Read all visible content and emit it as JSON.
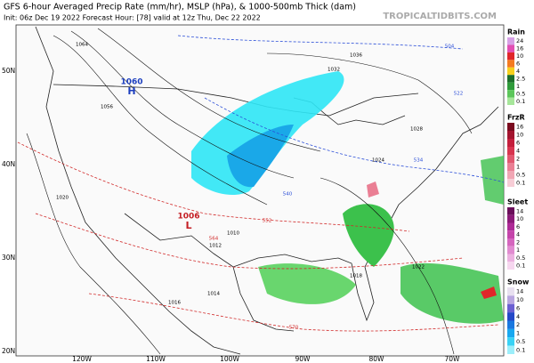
{
  "header": {
    "title": "GFS 6-hour Averaged Precip Rate (mm/hr), MSLP (hPa), & 1000-500mb Thick (dam)",
    "subtitle": "Init: 06z Dec 19 2022   Forecast Hour: [78]   valid at 12z Thu, Dec 22 2022",
    "watermark": "TROPICALTIDBITS.COM"
  },
  "map": {
    "lat_labels": [
      "50N",
      "40N",
      "30N",
      "20N"
    ],
    "lon_labels": [
      "120W",
      "110W",
      "100W",
      "90W",
      "80W",
      "70W"
    ],
    "centers": [
      {
        "value": "1060",
        "letter": "H",
        "color": "#1d3fbf"
      },
      {
        "value": "1006",
        "letter": "L",
        "color": "#c41e24"
      }
    ],
    "isobar_labels": [
      "1064",
      "1056",
      "1036",
      "1032",
      "1028",
      "1024",
      "1020",
      "1016",
      "1012",
      "1010",
      "1014",
      "1018",
      "1022"
    ],
    "thickness_labels": [
      "504",
      "522",
      "534",
      "540",
      "552",
      "564",
      "570"
    ]
  },
  "legend": [
    {
      "name": "Rain",
      "ticks": [
        24,
        16,
        10,
        6,
        4,
        2.5,
        1,
        0.5,
        0.1
      ],
      "colors": [
        "#d7a0e6",
        "#e24fb4",
        "#e0262a",
        "#f47b20",
        "#f6d01c",
        "#1c6e2a",
        "#2f9b3a",
        "#5cc65a",
        "#a6e69a"
      ]
    },
    {
      "name": "FrzR",
      "ticks": [
        16,
        10,
        6,
        4,
        2,
        1,
        0.5,
        0.1
      ],
      "colors": [
        "#7a0a1e",
        "#a3142e",
        "#c41e3c",
        "#d8344f",
        "#e25870",
        "#ea7f94",
        "#f1a6b4",
        "#f7cdd6"
      ]
    },
    {
      "name": "Sleet",
      "ticks": [
        14,
        10,
        6,
        4,
        2,
        1,
        0.5,
        0.1
      ],
      "colors": [
        "#6a0d5a",
        "#8c1a78",
        "#ad2a96",
        "#c444aa",
        "#d566be",
        "#e18bd0",
        "#ecb1e0",
        "#f6d6ef"
      ]
    },
    {
      "name": "Snow",
      "ticks": [
        14,
        10,
        6,
        4,
        2,
        1,
        0.5,
        0.1
      ],
      "colors": [
        "#e8e0f0",
        "#b9a6e0",
        "#6b5fd2",
        "#2448c8",
        "#1a78e0",
        "#18a8f0",
        "#38d2f5",
        "#9ceefa"
      ]
    }
  ]
}
